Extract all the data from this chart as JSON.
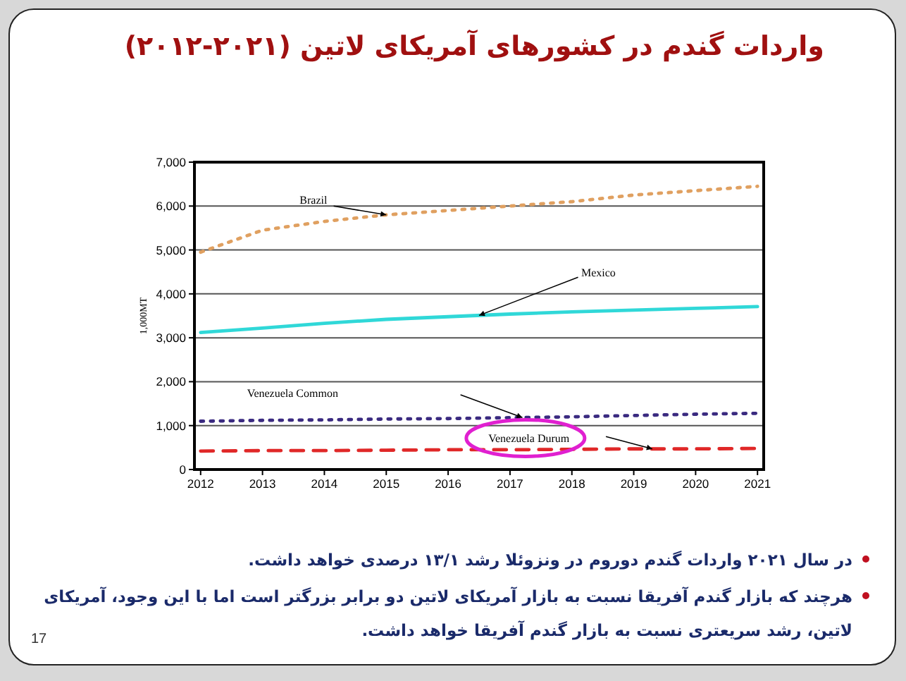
{
  "chart_data": {
    "type": "line",
    "title": "واردات گندم در کشورهای آمریکای لاتین (۲۰۲۱-۲۰۱۲)",
    "ylabel": "1,000MT",
    "x": [
      2012,
      2013,
      2014,
      2015,
      2016,
      2017,
      2018,
      2019,
      2020,
      2021
    ],
    "series": [
      {
        "name": "Brazil",
        "color": "#e0a060",
        "line_style": "dotted",
        "values": [
          4950,
          5450,
          5650,
          5800,
          5900,
          6000,
          6100,
          6250,
          6350,
          6450
        ]
      },
      {
        "name": "Mexico",
        "color": "#30d8d8",
        "line_style": "solid",
        "values": [
          3120,
          3220,
          3330,
          3420,
          3480,
          3540,
          3590,
          3630,
          3670,
          3710
        ]
      },
      {
        "name": "Venezuela Common",
        "color": "#3a2a80",
        "line_style": "dotted",
        "values": [
          1100,
          1120,
          1130,
          1150,
          1160,
          1180,
          1200,
          1230,
          1260,
          1280
        ]
      },
      {
        "name": "Venezuela Durum",
        "color": "#e02828",
        "line_style": "dashed",
        "values": [
          420,
          430,
          430,
          440,
          450,
          450,
          460,
          470,
          470,
          480
        ]
      }
    ],
    "xlim": [
      2011.9,
      2021.1
    ],
    "xticks": [
      2012,
      2013,
      2014,
      2015,
      2016,
      2017,
      2018,
      2019,
      2020,
      2021
    ],
    "ylim": [
      0,
      7000
    ],
    "yticks": [
      0,
      {
        "value": 1000,
        "label": "1,000"
      },
      {
        "value": 2000,
        "label": "2,000"
      },
      {
        "value": 3000,
        "label": "3,000"
      },
      {
        "value": 4000,
        "label": "4,000"
      },
      {
        "value": 5000,
        "label": "5,000"
      },
      {
        "value": 6000,
        "label": "6,000"
      },
      {
        "value": 7000,
        "label": "7,000"
      }
    ],
    "grid": "y",
    "annotations": [
      "در سال ۲۰۲۱ واردات گندم دوروم در ونزوئلا رشد ۱۳/۱ درصدی خواهد داشت.",
      "هرچند که بازار گندم آفریقا نسبت به بازار آمریکای لاتین دو برابر بزرگتر است اما با این وجود، آمریکای لاتین، رشد سریعتری نسبت به بازار گندم آفریقا خواهد داشت.",
      "17"
    ]
  }
}
